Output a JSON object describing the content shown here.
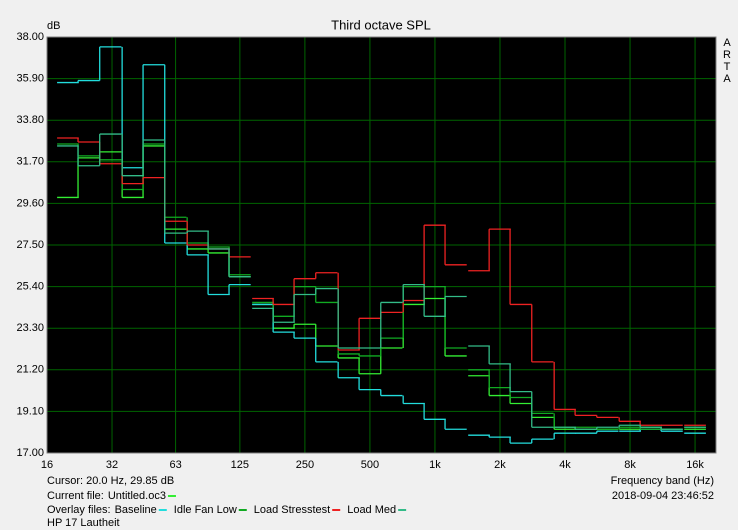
{
  "chart_data": {
    "type": "step",
    "title": "Third octave SPL",
    "y_label": "dB",
    "x_label": "Frequency band (Hz)",
    "brand": "ARTA",
    "log_x": true,
    "grid": true,
    "xlim": [
      16,
      20000
    ],
    "ylim": [
      17,
      38
    ],
    "xticks": [
      16,
      32,
      63,
      125,
      250,
      500,
      {
        "value": 1000,
        "label": "1k"
      },
      {
        "value": 2000,
        "label": "2k"
      },
      {
        "value": 4000,
        "label": "4k"
      },
      {
        "value": 8000,
        "label": "8k"
      },
      {
        "value": 16000,
        "label": "16k"
      }
    ],
    "yticks": [
      {
        "value": 17,
        "label": "17.00"
      },
      {
        "value": 19.1,
        "label": "19.10"
      },
      {
        "value": 21.2,
        "label": "21.20"
      },
      {
        "value": 23.3,
        "label": "23.30"
      },
      {
        "value": 25.4,
        "label": "25.40"
      },
      {
        "value": 27.5,
        "label": "27.50"
      },
      {
        "value": 29.6,
        "label": "29.60"
      },
      {
        "value": 31.7,
        "label": "31.70"
      },
      {
        "value": 33.8,
        "label": "33.80"
      },
      {
        "value": 35.9,
        "label": "35.90"
      },
      {
        "value": 38,
        "label": "38.00"
      }
    ],
    "x": [
      20,
      25,
      31.5,
      40,
      50,
      63,
      80,
      100,
      125,
      160,
      200,
      250,
      315,
      400,
      500,
      630,
      800,
      1000,
      1250,
      1600,
      2000,
      2500,
      3150,
      4000,
      5000,
      6300,
      8000,
      10000,
      12500,
      16000
    ],
    "cursor": "Cursor:   20.0 Hz, 29.85 dB",
    "current_file_label": "Current file:",
    "overlay_label": "Overlay files:",
    "measurement_name": "HP 17 Lautheit",
    "timestamp": "2018-09-04  23:46:52",
    "series": [
      {
        "name": "Untitled.oc3",
        "role": "current",
        "color": "#33ee33",
        "values": [
          29.9,
          31.9,
          32.2,
          29.9,
          32.5,
          28.3,
          27.3,
          27.1,
          25.9,
          24.5,
          23.3,
          23.5,
          22.4,
          21.8,
          21.0,
          22.3,
          24.5,
          24.8,
          21.9,
          20.9,
          19.9,
          19.5,
          18.8,
          18.2,
          18.2,
          18.2,
          18.2,
          18.3,
          18.2,
          18.2
        ]
      },
      {
        "name": "Baseline",
        "role": "overlay",
        "color": "#22dddd",
        "values": [
          35.7,
          35.8,
          37.5,
          31.4,
          36.6,
          27.6,
          27.0,
          25.0,
          25.5,
          24.5,
          23.1,
          22.8,
          21.6,
          20.8,
          20.2,
          19.9,
          19.5,
          18.7,
          18.2,
          17.9,
          17.8,
          17.5,
          17.7,
          18.0,
          18.0,
          18.1,
          18.1,
          18.2,
          18.1,
          18.0
        ]
      },
      {
        "name": "Idle Fan Low",
        "role": "overlay",
        "color": "#11aa22",
        "values": [
          32.6,
          32.0,
          31.8,
          30.3,
          32.6,
          28.9,
          27.6,
          27.4,
          26.0,
          24.6,
          23.9,
          25.4,
          24.6,
          22.0,
          21.9,
          22.8,
          25.4,
          25.4,
          22.3,
          21.2,
          20.3,
          19.8,
          19.0,
          18.3,
          18.3,
          18.2,
          18.3,
          18.2,
          18.2,
          18.3
        ]
      },
      {
        "name": "Load Stresstest",
        "role": "overlay",
        "color": "#ee2222",
        "values": [
          32.9,
          32.7,
          31.6,
          30.6,
          30.9,
          28.7,
          27.5,
          27.3,
          26.9,
          24.8,
          24.5,
          25.8,
          26.1,
          22.2,
          23.8,
          24.1,
          24.7,
          28.5,
          26.5,
          26.2,
          28.3,
          24.5,
          21.6,
          19.2,
          18.9,
          18.8,
          18.6,
          18.4,
          18.4,
          18.4
        ]
      },
      {
        "name": "Load Med",
        "role": "overlay",
        "color": "#33bb88",
        "values": [
          32.5,
          31.5,
          33.1,
          31.0,
          32.8,
          28.1,
          28.2,
          27.3,
          25.9,
          24.3,
          23.6,
          25.0,
          25.3,
          22.3,
          22.3,
          24.6,
          25.5,
          23.9,
          24.9,
          22.4,
          21.5,
          20.1,
          18.3,
          18.3,
          18.2,
          18.3,
          18.4,
          18.3,
          18.2,
          18.3
        ]
      }
    ]
  }
}
